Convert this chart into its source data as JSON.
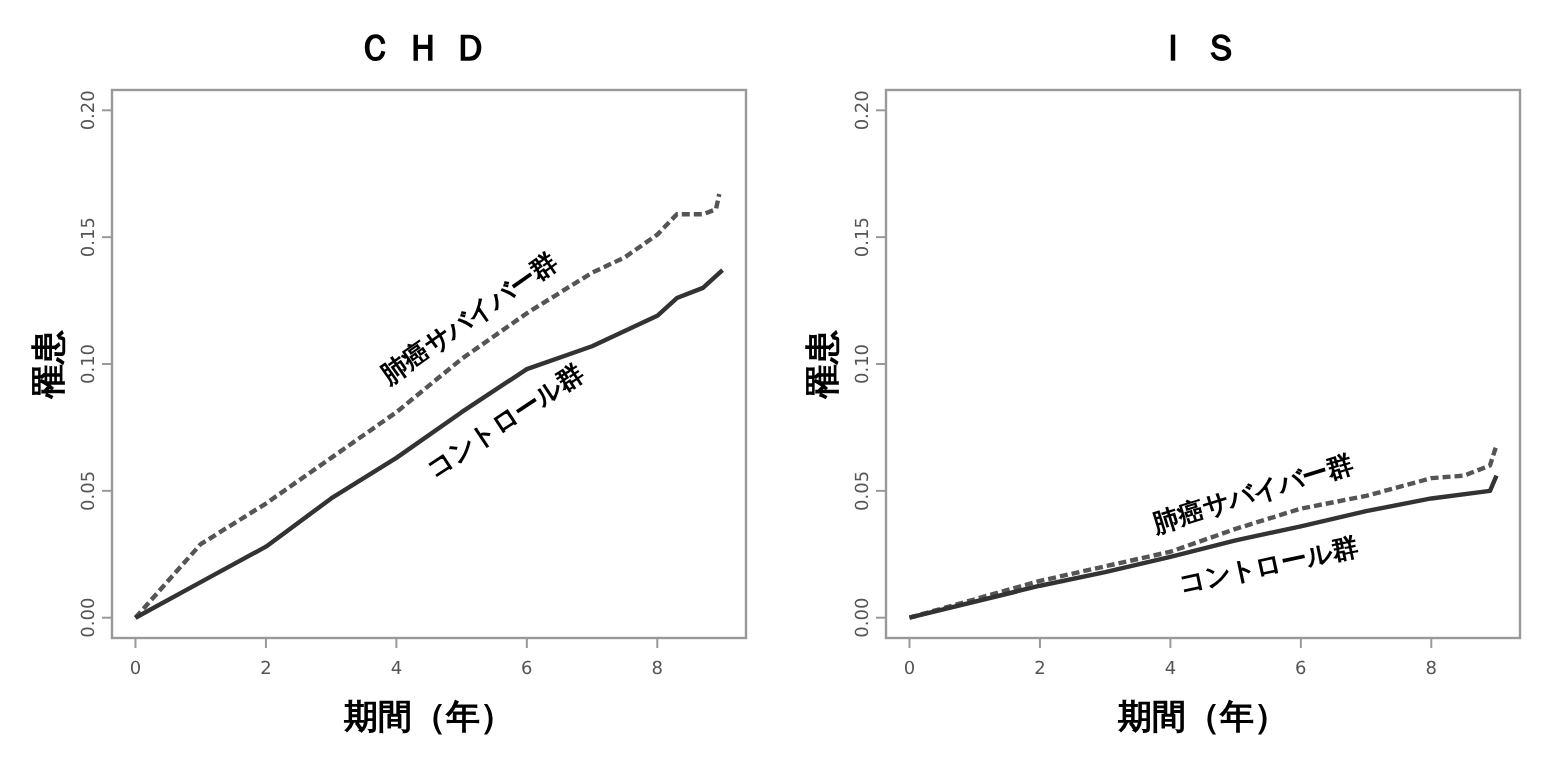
{
  "chart_data": [
    {
      "type": "line",
      "title": "ＣＨＤ",
      "xlabel": "期間（年）",
      "ylabel": "罹患",
      "xlim": [
        -0.36,
        9.36
      ],
      "ylim": [
        -0.008,
        0.208
      ],
      "xticks": [
        0,
        2,
        4,
        6,
        8
      ],
      "yticks": [
        {
          "value": 0,
          "label": "0.00"
        },
        {
          "value": 0.05,
          "label": "0.05"
        },
        {
          "value": 0.1,
          "label": "0.10"
        },
        {
          "value": 0.15,
          "label": "0.15"
        },
        {
          "value": 0.2,
          "label": "0.20"
        }
      ],
      "grid": false,
      "legend": false,
      "series": [
        {
          "name": "肺癌サバイバー群",
          "color": "#555555",
          "line_style": "dashed",
          "x": [
            0,
            1,
            2,
            3,
            4,
            5,
            6,
            6.5,
            7,
            7.5,
            8,
            8.3,
            8.7,
            8.9,
            8.95
          ],
          "values": [
            0,
            0.029,
            0.045,
            0.063,
            0.081,
            0.102,
            0.12,
            0.128,
            0.136,
            0.142,
            0.151,
            0.159,
            0.159,
            0.161,
            0.167
          ]
        },
        {
          "name": "コントロール群",
          "color": "#333333",
          "line_style": "solid",
          "x": [
            0,
            1,
            2,
            3,
            4,
            5,
            6,
            7,
            8,
            8.3,
            8.7,
            9
          ],
          "values": [
            0,
            0.014,
            0.028,
            0.047,
            0.063,
            0.081,
            0.098,
            0.107,
            0.119,
            0.126,
            0.13,
            0.137
          ]
        }
      ]
    },
    {
      "type": "line",
      "title": "ＩＳ",
      "xlabel": "期間（年）",
      "ylabel": "罹患",
      "xlim": [
        -0.36,
        9.36
      ],
      "ylim": [
        -0.008,
        0.208
      ],
      "xticks": [
        0,
        2,
        4,
        6,
        8
      ],
      "yticks": [
        {
          "value": 0,
          "label": "0.00"
        },
        {
          "value": 0.05,
          "label": "0.05"
        },
        {
          "value": 0.1,
          "label": "0.10"
        },
        {
          "value": 0.15,
          "label": "0.15"
        },
        {
          "value": 0.2,
          "label": "0.20"
        }
      ],
      "grid": false,
      "legend": false,
      "series": [
        {
          "name": "肺癌サバイバー群",
          "color": "#555555",
          "line_style": "dashed",
          "x": [
            0,
            2,
            4,
            5,
            6,
            7,
            8,
            8.5,
            8.9,
            9
          ],
          "values": [
            0,
            0.0145,
            0.026,
            0.035,
            0.043,
            0.048,
            0.055,
            0.056,
            0.06,
            0.068
          ]
        },
        {
          "name": "コントロール群",
          "color": "#333333",
          "line_style": "solid",
          "x": [
            0,
            2,
            3,
            4,
            5,
            6,
            7,
            8,
            8.9,
            9
          ],
          "values": [
            0,
            0.0126,
            0.018,
            0.024,
            0.0305,
            0.036,
            0.042,
            0.047,
            0.05,
            0.056
          ]
        }
      ]
    }
  ]
}
